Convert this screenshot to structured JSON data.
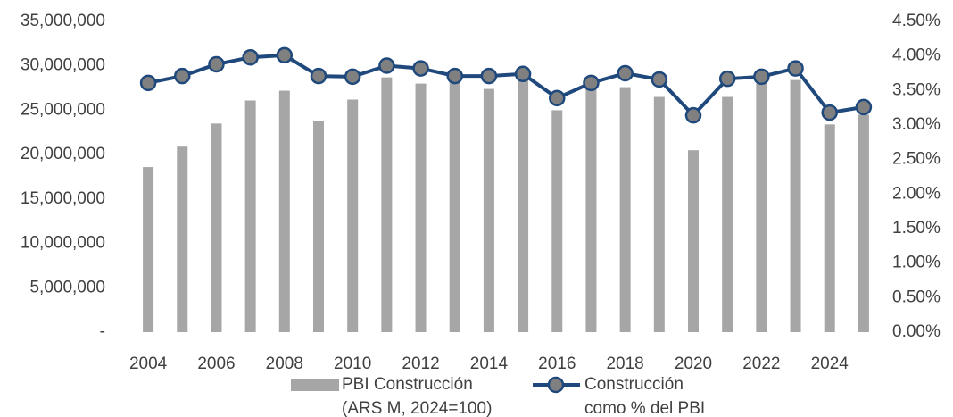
{
  "chart_data": {
    "type": "bar_line",
    "categories": [
      "2004",
      null,
      "2006",
      null,
      "2008",
      null,
      "2010",
      null,
      "2012",
      null,
      "2014",
      null,
      "2016",
      null,
      "2018",
      null,
      "2020",
      null,
      "2022",
      null,
      "2024",
      null
    ],
    "series": [
      {
        "name": "PBI Construcción (ARS M, 2024=100)",
        "type": "bar",
        "color": "#a6a6a6",
        "axis": "y",
        "values": [
          18600000,
          20900000,
          23500000,
          26100000,
          27200000,
          23800000,
          26200000,
          28700000,
          28000000,
          28500000,
          27400000,
          28700000,
          25000000,
          27400000,
          27600000,
          26500000,
          20500000,
          26500000,
          28400000,
          28400000,
          23400000,
          24500000
        ]
      },
      {
        "name": "Construcción como % del PBI",
        "type": "line",
        "color": "#1f497d",
        "axis": "y2",
        "values": [
          3.61,
          3.71,
          3.88,
          3.98,
          4.01,
          3.71,
          3.7,
          3.86,
          3.82,
          3.71,
          3.71,
          3.74,
          3.39,
          3.61,
          3.75,
          3.66,
          3.14,
          3.67,
          3.7,
          3.82,
          3.18,
          3.26
        ]
      }
    ],
    "ylim": [
      0,
      35000000
    ],
    "yticks": [
      {
        "value": 0,
        "label": "-"
      },
      {
        "value": 5000000,
        "label": "5,000,000"
      },
      {
        "value": 10000000,
        "label": "10,000,000"
      },
      {
        "value": 15000000,
        "label": "15,000,000"
      },
      {
        "value": 20000000,
        "label": "20,000,000"
      },
      {
        "value": 25000000,
        "label": "25,000,000"
      },
      {
        "value": 30000000,
        "label": "30,000,000"
      },
      {
        "value": 35000000,
        "label": "35,000,000"
      }
    ],
    "y2lim": [
      0,
      4.5
    ],
    "y2ticks": [
      {
        "value": 0,
        "label": "0.00%"
      },
      {
        "value": 0.5,
        "label": "0.50%"
      },
      {
        "value": 1,
        "label": "1.00%"
      },
      {
        "value": 1.5,
        "label": "1.50%"
      },
      {
        "value": 2,
        "label": "2.00%"
      },
      {
        "value": 2.5,
        "label": "2.50%"
      },
      {
        "value": 3,
        "label": "3.00%"
      },
      {
        "value": 3.5,
        "label": "3.50%"
      },
      {
        "value": 4,
        "label": "4.00%"
      },
      {
        "value": 4.5,
        "label": "4.50%"
      }
    ],
    "marker_color": "#808080",
    "legend": "bottom"
  }
}
